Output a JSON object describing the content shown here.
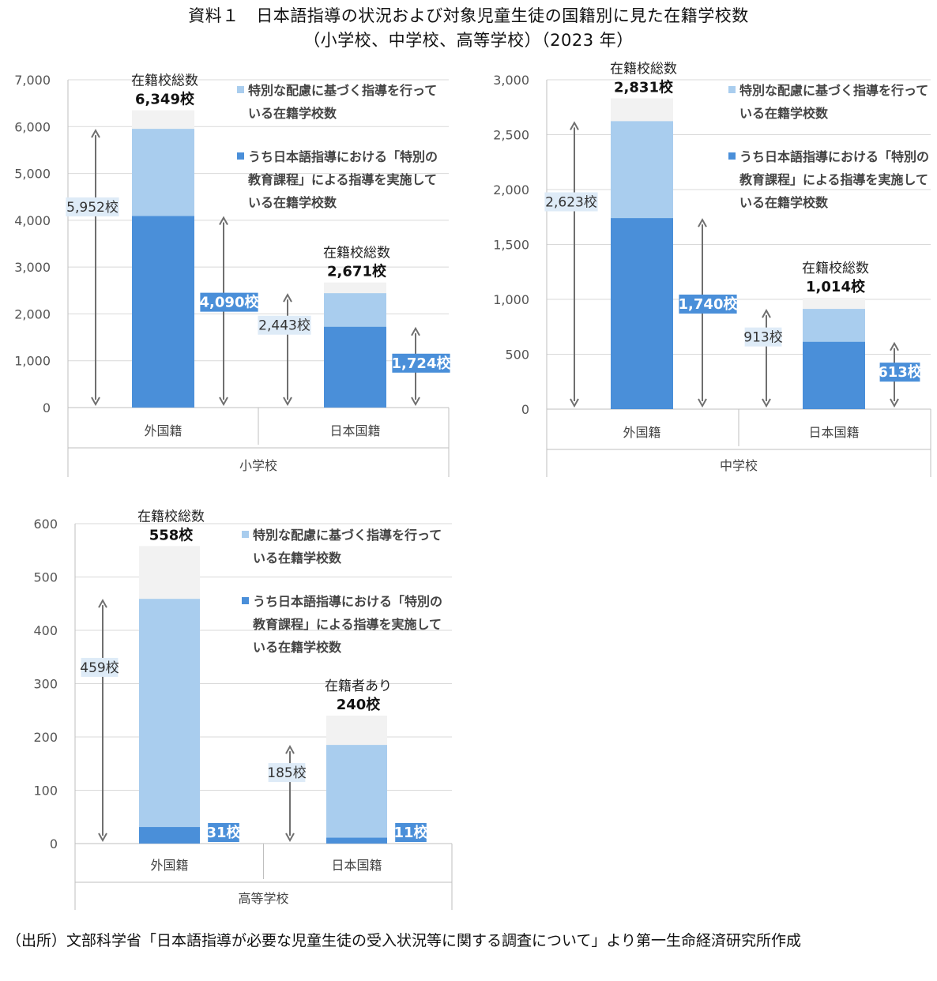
{
  "title": {
    "line1": "資料１　日本語指導の状況および対象児童生徒の国籍別に見た在籍学校数",
    "line2": "（小学校、中学校、高等学校）（2023 年）"
  },
  "source": "（出所）文部科学省「日本語指導が必要な児童生徒の受入状況等に関する調査について」より第一生命経済研究所作成",
  "colors": {
    "total": "#f2f2f2",
    "special_care": "#a9cdee",
    "special_curriculum": "#4a8fd9",
    "axis": "#bfbfbf",
    "grid": "#d9d9d9",
    "arrow": "#6f6f6f",
    "light_label_bg": "#deebf7",
    "dark_label_bg": "#4a8fd9"
  },
  "chart_data": [
    {
      "type": "bar",
      "stacked": true,
      "group_label": "小学校",
      "categories": [
        "外国籍",
        "日本国籍"
      ],
      "ylim": [
        0,
        7000
      ],
      "yticks": [
        "0",
        "1,000",
        "2,000",
        "3,000",
        "4,000",
        "5,000",
        "6,000",
        "7,000"
      ],
      "grid": true,
      "legend_position": "top-right",
      "legend": [
        {
          "key": "special_care",
          "text": [
            "特別な配慮に基づく指導を行って",
            "いる在籍学校数"
          ]
        },
        {
          "key": "special_curriculum",
          "text": [
            "うち日本語指導における「特別の",
            "教育課程」による指導を実施して",
            "いる在籍学校数"
          ]
        }
      ],
      "values": {
        "total": [
          6349,
          2671
        ],
        "special_care": [
          5952,
          2443
        ],
        "special_curriculum": [
          4090,
          1724
        ]
      },
      "total_caption": [
        "在籍校総数",
        "在籍校総数"
      ],
      "total_labels": [
        "6,349校",
        "2,671校"
      ],
      "care_labels": [
        "5,952校",
        "2,443校"
      ],
      "curriculum_labels": [
        "4,090校",
        "1,724校"
      ]
    },
    {
      "type": "bar",
      "stacked": true,
      "group_label": "中学校",
      "categories": [
        "外国籍",
        "日本国籍"
      ],
      "ylim": [
        0,
        3000
      ],
      "yticks": [
        "0",
        "500",
        "1,000",
        "1,500",
        "2,000",
        "2,500",
        "3,000"
      ],
      "grid": true,
      "legend_position": "top-right",
      "legend": [
        {
          "key": "special_care",
          "text": [
            "特別な配慮に基づく指導を行って",
            "いる在籍学校数"
          ]
        },
        {
          "key": "special_curriculum",
          "text": [
            "うち日本語指導における「特別の",
            "教育課程」による指導を実施して",
            "いる在籍学校数"
          ]
        }
      ],
      "values": {
        "total": [
          2831,
          1014
        ],
        "special_care": [
          2623,
          913
        ],
        "special_curriculum": [
          1740,
          613
        ]
      },
      "total_caption": [
        "在籍校総数",
        "在籍校総数"
      ],
      "total_labels": [
        "2,831校",
        "1,014校"
      ],
      "care_labels": [
        "2,623校",
        "913校"
      ],
      "curriculum_labels": [
        "1,740校",
        "613校"
      ]
    },
    {
      "type": "bar",
      "stacked": true,
      "group_label": "高等学校",
      "categories": [
        "外国籍",
        "日本国籍"
      ],
      "ylim": [
        0,
        600
      ],
      "yticks": [
        "0",
        "100",
        "200",
        "300",
        "400",
        "500",
        "600"
      ],
      "grid": true,
      "legend_position": "top-right",
      "legend": [
        {
          "key": "special_care",
          "text": [
            "特別な配慮に基づく指導を行って",
            "いる在籍学校数"
          ]
        },
        {
          "key": "special_curriculum",
          "text": [
            "うち日本語指導における「特別の",
            "教育課程」による指導を実施して",
            "いる在籍学校数"
          ]
        }
      ],
      "values": {
        "total": [
          558,
          240
        ],
        "special_care": [
          459,
          185
        ],
        "special_curriculum": [
          31,
          11
        ]
      },
      "total_caption": [
        "在籍校総数",
        "在籍者あり"
      ],
      "total_labels": [
        "558校",
        "240校"
      ],
      "care_labels": [
        "459校",
        "185校"
      ],
      "curriculum_labels": [
        "31校",
        "11校"
      ]
    }
  ]
}
